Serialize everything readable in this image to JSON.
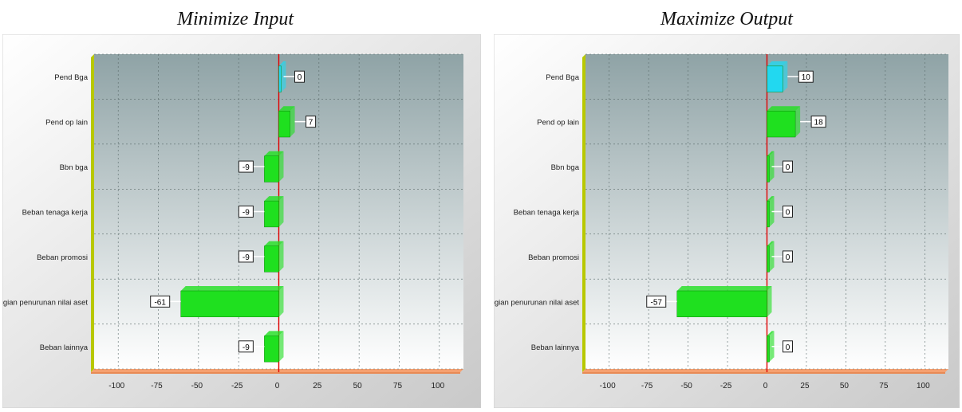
{
  "page": {
    "left_title": "Minimize Input",
    "right_title": "Maximize Output"
  },
  "colors": {
    "positive_bar": "#1fe01f",
    "highlight_bar": "#22d8f0",
    "zero_line": "#e00000",
    "axis_floor": "#f5a070",
    "left_wall": "#b8c800",
    "plot_top": "#8fa3a6",
    "plot_bottom": "#ffffff"
  },
  "chart_data": [
    {
      "type": "bar",
      "orientation": "horizontal",
      "title": "Minimize Input",
      "categories": [
        "Pend Bga",
        "Pend op lain",
        "Bbn bga",
        "Beban tenaga kerja",
        "Beban promosi",
        "Kerugian penurunan nilai aset",
        "Beban lainnya"
      ],
      "values": [
        0,
        7,
        -9,
        -9,
        -9,
        -61,
        -9
      ],
      "data_labels": [
        "0",
        "7",
        "-9",
        "-9",
        "-9",
        "-61",
        "-9"
      ],
      "highlight_index": 0,
      "xticks": [
        "-100",
        "-75",
        "-50",
        "-25",
        "0",
        "25",
        "50",
        "75",
        "100"
      ],
      "xlim": [
        -115,
        115
      ],
      "grid": true,
      "legend": "none"
    },
    {
      "type": "bar",
      "orientation": "horizontal",
      "title": "Maximize Output",
      "categories": [
        "Pend Bga",
        "Pend op lain",
        "Bbn bga",
        "Beban tenaga kerja",
        "Beban promosi",
        "Kerugian penurunan nilai aset",
        "Beban lainnya"
      ],
      "values": [
        10,
        18,
        0,
        0,
        0,
        -57,
        0
      ],
      "data_labels": [
        "10",
        "18",
        "0",
        "0",
        "0",
        "-57",
        "0"
      ],
      "highlight_index": 0,
      "xticks": [
        "-100",
        "-75",
        "-50",
        "-25",
        "0",
        "25",
        "50",
        "75",
        "100"
      ],
      "xlim": [
        -115,
        115
      ],
      "grid": true,
      "legend": "none"
    }
  ]
}
